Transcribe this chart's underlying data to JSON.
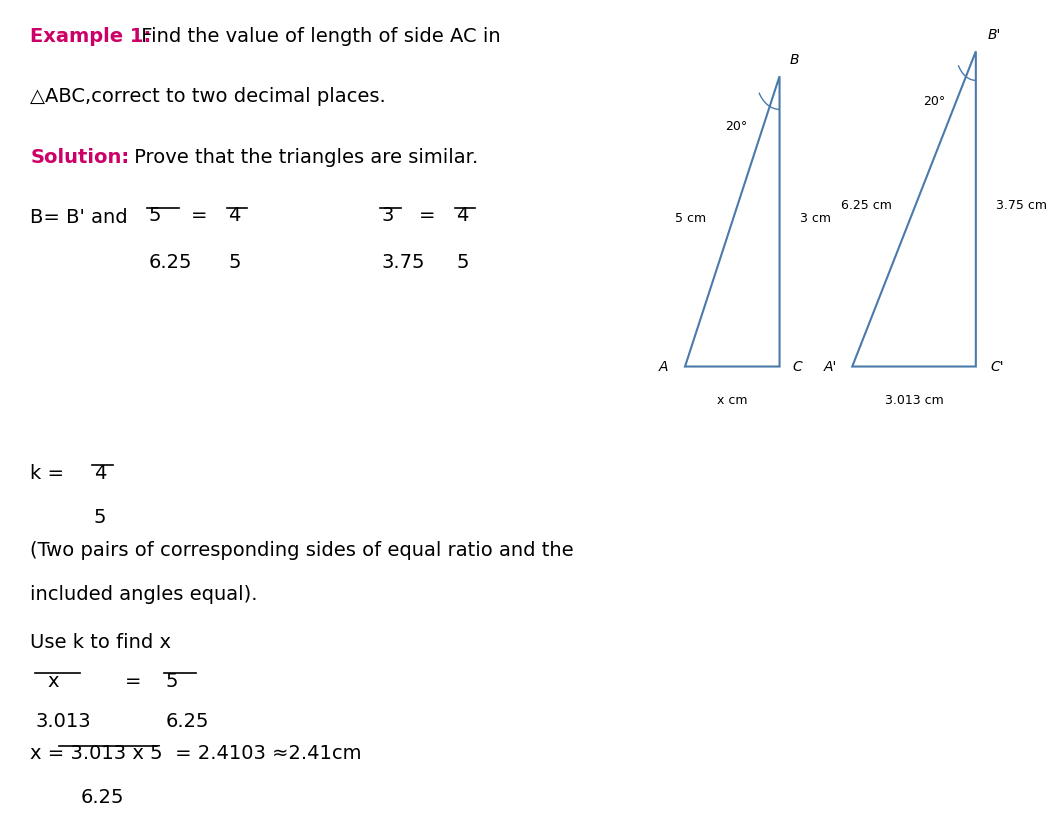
{
  "bg_color": "#e8e0f0",
  "text_color": "#000000",
  "highlight_color": "#cc0066",
  "solution_color": "#cc0066",
  "triangle_color": "#4a7aaa",
  "white_bg": "#ffffff",
  "fontsize": 14,
  "tri1_side_AB": "5 cm",
  "tri1_side_BC": "3 cm",
  "tri1_side_AC": "x cm",
  "tri1_angle": "20°",
  "tri2_side_AB": "6.25 cm",
  "tri2_side_BC": "3.75 cm",
  "tri2_side_AC": "3.013 cm",
  "tri2_angle": "20°"
}
